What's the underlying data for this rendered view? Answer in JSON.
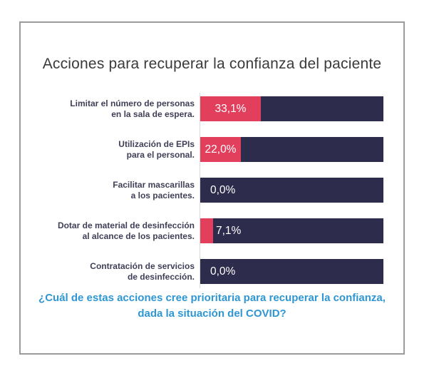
{
  "title": "Acciones para recuperar la confianza del paciente",
  "caption": {
    "line1": "¿Cuál de estas acciones cree prioritaria para recuperar la confianza,",
    "line2": "dada la situación del COVID?"
  },
  "colors": {
    "bar_fill_pink": "#e23f5d",
    "bar_track_navy": "#2e2c4c",
    "value_label_text": "#ffffff",
    "category_label_text": "#3f3f58",
    "title_text": "#3a3a3a",
    "caption_text": "#2e96d2",
    "frame_border": "#9b9b9b",
    "axis_line": "#d9d9d9"
  },
  "chart_data": {
    "type": "bar",
    "orientation": "horizontal",
    "title": "Acciones para recuperar la confianza del paciente",
    "xlabel": "",
    "ylabel": "",
    "xlim": [
      0,
      100
    ],
    "unit": "%",
    "grid": false,
    "legend": "none",
    "categories": [
      "Limitar el número de personas en la sala de espera.",
      "Utilización de EPIs para el personal.",
      "Facilitar mascarillas a los pacientes.",
      "Dotar de material de desinfección al alcance de los pacientes.",
      "Contratación de servicios de desinfección."
    ],
    "values": [
      33.1,
      22.0,
      0.0,
      7.1,
      0.0
    ],
    "bars": [
      {
        "label_lines": [
          "Limitar el número de personas",
          "en la sala de espera."
        ],
        "value": 33.1,
        "value_label": "33,1%"
      },
      {
        "label_lines": [
          "Utilización de EPIs",
          "para el personal."
        ],
        "value": 22.0,
        "value_label": "22,0%"
      },
      {
        "label_lines": [
          "Facilitar mascarillas",
          "a los pacientes."
        ],
        "value": 0.0,
        "value_label": "0,0%"
      },
      {
        "label_lines": [
          "Dotar de material de desinfección",
          "al alcance de los pacientes."
        ],
        "value": 7.1,
        "value_label": "7,1%"
      },
      {
        "label_lines": [
          "Contratación de servicios",
          "de desinfección."
        ],
        "value": 0.0,
        "value_label": "0,0%"
      }
    ]
  }
}
